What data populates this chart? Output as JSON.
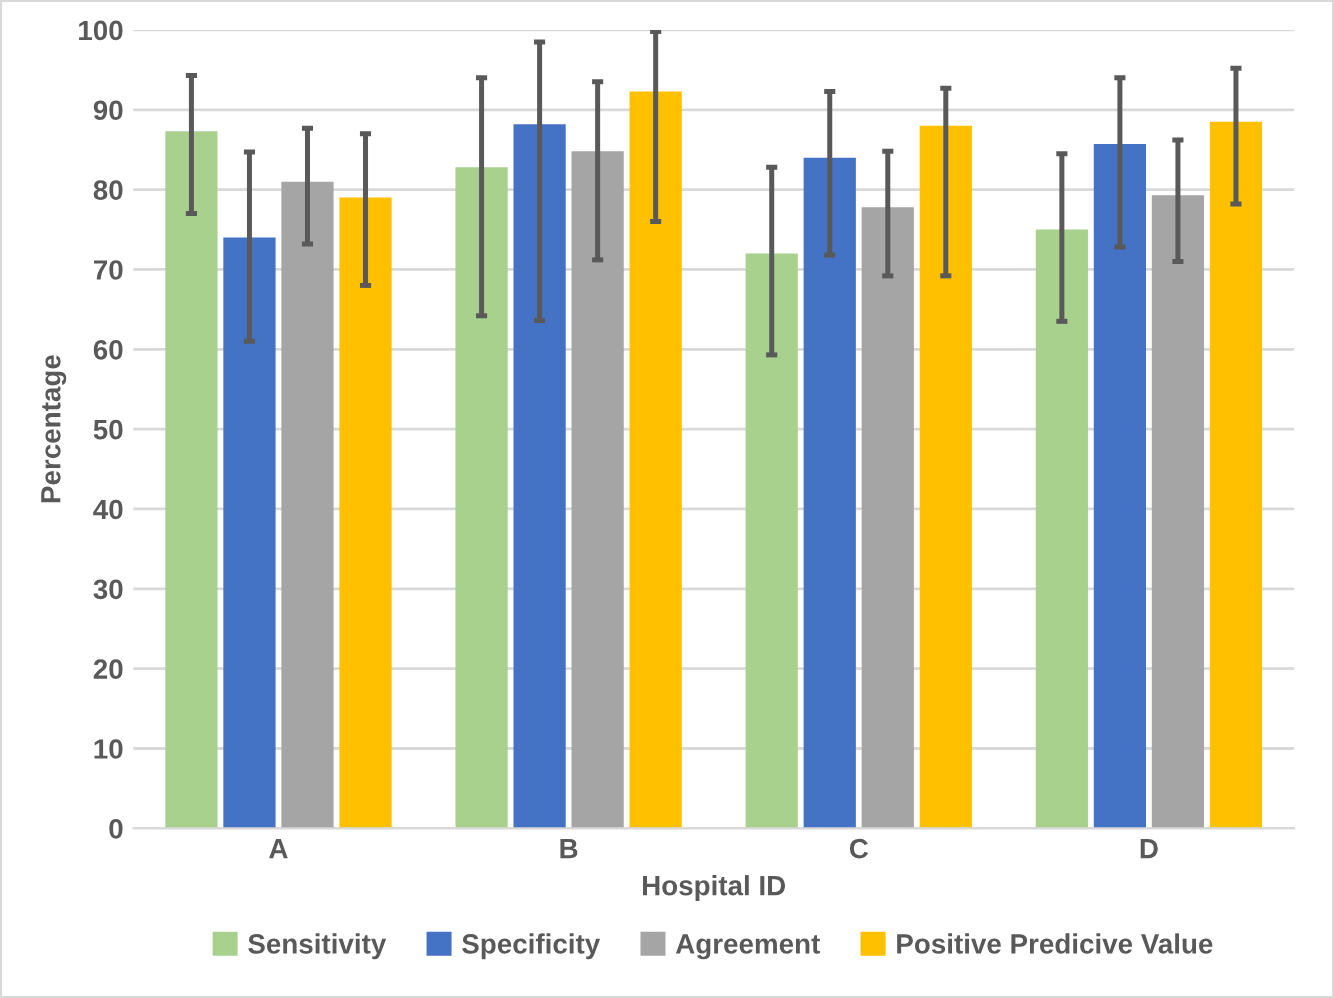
{
  "chart_data": {
    "type": "bar",
    "xlabel": "Hospital ID",
    "ylabel": "Percentage",
    "categories": [
      "A",
      "B",
      "C",
      "D"
    ],
    "series": [
      {
        "name": "Sensitivity",
        "color": "#a9d18e",
        "values": [
          87.3,
          82.8,
          72,
          75
        ],
        "errors": [
          [
            77,
            94.3
          ],
          [
            64.2,
            94
          ],
          [
            59.3,
            82.8
          ],
          [
            63.5,
            84.5
          ]
        ]
      },
      {
        "name": "Specificity",
        "color": "#4472c4",
        "values": [
          74,
          88.2,
          84,
          85.7
        ],
        "errors": [
          [
            61,
            84.7
          ],
          [
            63.6,
            98.5
          ],
          [
            71.8,
            92.3
          ],
          [
            72.8,
            94
          ]
        ]
      },
      {
        "name": "Agreement",
        "color": "#a5a5a5",
        "values": [
          81,
          84.8,
          77.8,
          79.3
        ],
        "errors": [
          [
            73.2,
            87.7
          ],
          [
            71.2,
            93.5
          ],
          [
            69.2,
            84.8
          ],
          [
            71,
            86.2
          ]
        ]
      },
      {
        "name": "Positive Predicive Value",
        "color": "#ffc000",
        "values": [
          79,
          92.3,
          88,
          88.5
        ],
        "errors": [
          [
            68,
            87
          ],
          [
            76,
            99.8
          ],
          [
            69.2,
            92.7
          ],
          [
            78.2,
            95.2
          ]
        ]
      }
    ],
    "ylim": [
      0,
      100
    ],
    "yticks": [
      0,
      10,
      20,
      30,
      40,
      50,
      60,
      70,
      80,
      90,
      100
    ],
    "grid": "y",
    "legend": "bottom"
  }
}
